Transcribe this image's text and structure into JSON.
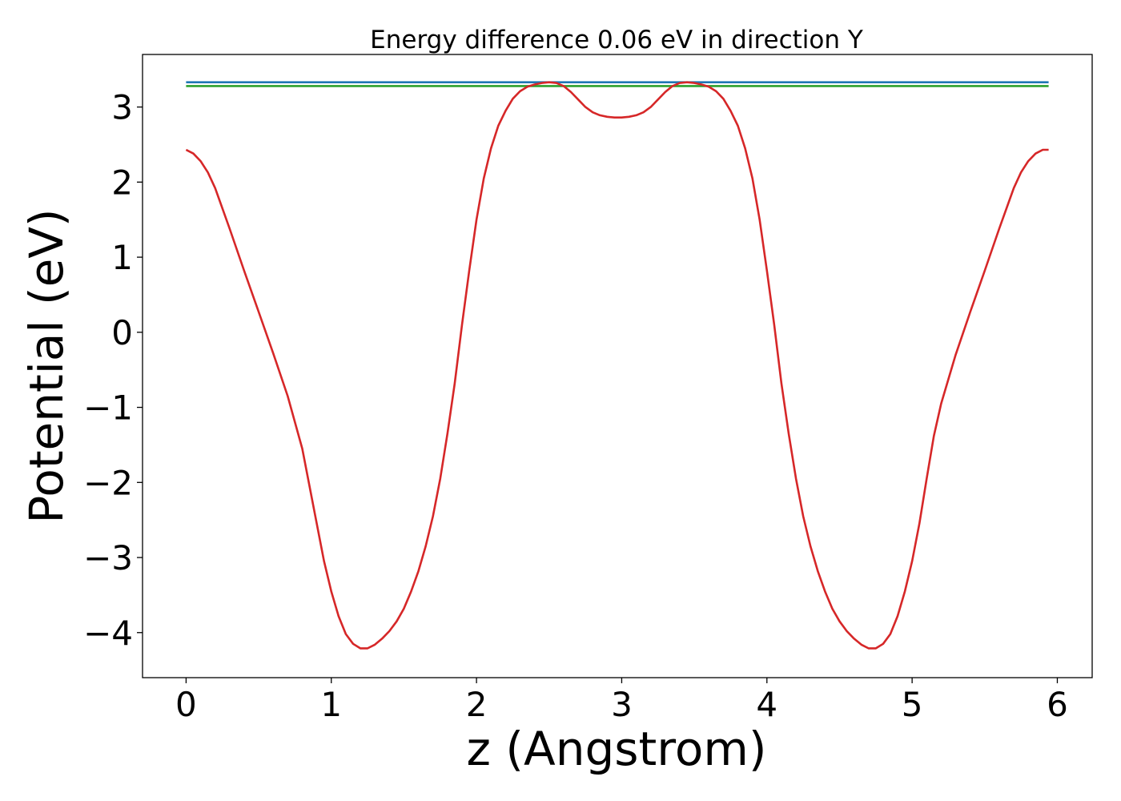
{
  "chart_data": {
    "type": "line",
    "title": "Energy difference 0.06 eV in direction Y",
    "xlabel": "z (Angstrom)",
    "ylabel": "Potential (eV)",
    "xlim": [
      -0.3,
      6.24
    ],
    "ylim": [
      -4.6,
      3.7
    ],
    "xticks": [
      0,
      1,
      2,
      3,
      4,
      5,
      6
    ],
    "yticks": [
      -4,
      -3,
      -2,
      -1,
      0,
      1,
      2,
      3
    ],
    "grid": false,
    "series": [
      {
        "color": "#1f77b4",
        "x": [
          0,
          5.94
        ],
        "y": [
          3.33,
          3.33
        ]
      },
      {
        "color": "#2ca02c",
        "x": [
          0,
          5.94
        ],
        "y": [
          3.28,
          3.28
        ]
      },
      {
        "color": "#d62728",
        "x": [
          0,
          0.05,
          0.1,
          0.15,
          0.2,
          0.3,
          0.4,
          0.5,
          0.6,
          0.7,
          0.8,
          0.9,
          0.95,
          1.0,
          1.05,
          1.1,
          1.15,
          1.2,
          1.25,
          1.3,
          1.35,
          1.4,
          1.45,
          1.5,
          1.55,
          1.6,
          1.65,
          1.7,
          1.75,
          1.8,
          1.85,
          1.9,
          1.95,
          2.0,
          2.05,
          2.1,
          2.15,
          2.2,
          2.25,
          2.3,
          2.35,
          2.4,
          2.45,
          2.5,
          2.55,
          2.6,
          2.65,
          2.7,
          2.75,
          2.8,
          2.85,
          2.9,
          2.95,
          3.0,
          3.05,
          3.1,
          3.15,
          3.2,
          3.25,
          3.3,
          3.35,
          3.4,
          3.45,
          3.5,
          3.55,
          3.6,
          3.65,
          3.7,
          3.75,
          3.8,
          3.85,
          3.9,
          3.95,
          4.0,
          4.05,
          4.1,
          4.15,
          4.2,
          4.25,
          4.3,
          4.35,
          4.4,
          4.45,
          4.5,
          4.55,
          4.6,
          4.65,
          4.7,
          4.75,
          4.8,
          4.85,
          4.9,
          4.95,
          5.0,
          5.05,
          5.1,
          5.15,
          5.2,
          5.3,
          5.4,
          5.5,
          5.6,
          5.7,
          5.75,
          5.8,
          5.85,
          5.9,
          5.94
        ],
        "y": [
          2.43,
          2.38,
          2.28,
          2.13,
          1.92,
          1.38,
          0.82,
          0.27,
          -0.28,
          -0.85,
          -1.55,
          -2.55,
          -3.05,
          -3.45,
          -3.78,
          -4.02,
          -4.15,
          -4.21,
          -4.21,
          -4.16,
          -4.08,
          -3.98,
          -3.85,
          -3.68,
          -3.45,
          -3.18,
          -2.85,
          -2.45,
          -1.95,
          -1.35,
          -0.68,
          0.1,
          0.82,
          1.5,
          2.05,
          2.45,
          2.75,
          2.95,
          3.11,
          3.21,
          3.27,
          3.3,
          3.32,
          3.33,
          3.32,
          3.28,
          3.2,
          3.1,
          3.0,
          2.93,
          2.89,
          2.87,
          2.86,
          2.86,
          2.87,
          2.89,
          2.93,
          3.0,
          3.1,
          3.2,
          3.28,
          3.32,
          3.33,
          3.32,
          3.3,
          3.27,
          3.21,
          3.11,
          2.95,
          2.75,
          2.45,
          2.05,
          1.5,
          0.82,
          0.1,
          -0.68,
          -1.35,
          -1.95,
          -2.45,
          -2.85,
          -3.18,
          -3.45,
          -3.68,
          -3.85,
          -3.98,
          -4.08,
          -4.16,
          -4.21,
          -4.21,
          -4.15,
          -4.02,
          -3.78,
          -3.45,
          -3.05,
          -2.55,
          -1.95,
          -1.38,
          -0.95,
          -0.3,
          0.27,
          0.82,
          1.38,
          1.92,
          2.13,
          2.28,
          2.38,
          2.43,
          2.43
        ]
      }
    ]
  }
}
